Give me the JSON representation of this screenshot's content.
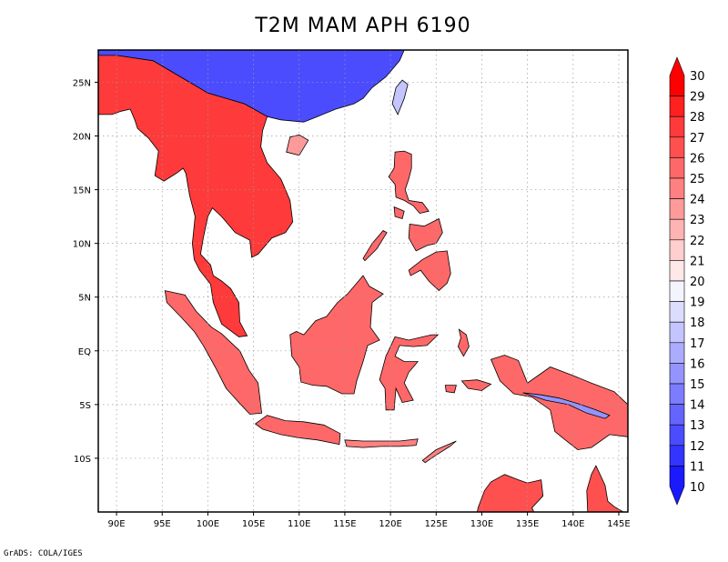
{
  "title": "T2M MAM APH 6190",
  "footer": "GrADS: COLA/IGES",
  "map": {
    "lon_range": [
      88,
      146
    ],
    "lat_range": [
      -15,
      28
    ],
    "lon_ticks": [
      {
        "v": 90,
        "label": "90E"
      },
      {
        "v": 95,
        "label": "95E"
      },
      {
        "v": 100,
        "label": "100E"
      },
      {
        "v": 105,
        "label": "105E"
      },
      {
        "v": 110,
        "label": "110E"
      },
      {
        "v": 115,
        "label": "115E"
      },
      {
        "v": 120,
        "label": "120E"
      },
      {
        "v": 125,
        "label": "125E"
      },
      {
        "v": 130,
        "label": "130E"
      },
      {
        "v": 135,
        "label": "135E"
      },
      {
        "v": 140,
        "label": "140E"
      },
      {
        "v": 145,
        "label": "145E"
      }
    ],
    "lat_ticks": [
      {
        "v": 25,
        "label": "25N"
      },
      {
        "v": 20,
        "label": "20N"
      },
      {
        "v": 15,
        "label": "15N"
      },
      {
        "v": 10,
        "label": "10N"
      },
      {
        "v": 5,
        "label": "5N"
      },
      {
        "v": 0,
        "label": "EQ"
      },
      {
        "v": -5,
        "label": "5S"
      },
      {
        "v": -10,
        "label": "10S"
      }
    ]
  },
  "colorbar": {
    "min": 10,
    "max": 30,
    "labels": [
      "30",
      "29",
      "28",
      "27",
      "26",
      "25",
      "24",
      "23",
      "22",
      "21",
      "20",
      "19",
      "18",
      "17",
      "16",
      "15",
      "14",
      "13",
      "12",
      "11",
      "10"
    ],
    "colors": [
      "#ff0000",
      "#ff2020",
      "#ff3a3a",
      "#ff5050",
      "#ff6868",
      "#ff8080",
      "#ff9a9a",
      "#ffb4b4",
      "#ffcece",
      "#ffe8e8",
      "#f4f4ff",
      "#dcdcff",
      "#c4c4ff",
      "#acacff",
      "#9494ff",
      "#7c7cff",
      "#6464ff",
      "#4c4cff",
      "#3434ff",
      "#1a1aff"
    ]
  },
  "regions": [
    {
      "name": "south-china",
      "t": 13,
      "pts": [
        [
          88,
          28
        ],
        [
          121.5,
          28
        ],
        [
          121,
          27
        ],
        [
          120,
          26
        ],
        [
          119.5,
          25.5
        ],
        [
          118,
          24.5
        ],
        [
          117,
          23.5
        ],
        [
          116,
          23
        ],
        [
          114,
          22.5
        ],
        [
          112,
          21.8
        ],
        [
          110.5,
          21.3
        ],
        [
          108,
          21.5
        ],
        [
          106.5,
          21.8
        ],
        [
          104,
          23
        ],
        [
          102,
          23.5
        ],
        [
          100,
          24
        ],
        [
          98,
          25
        ],
        [
          96,
          26
        ],
        [
          94,
          27
        ],
        [
          90,
          27.5
        ],
        [
          88,
          27.5
        ]
      ]
    },
    {
      "name": "mainland-se-asia",
      "t": 28,
      "pts": [
        [
          88,
          27.5
        ],
        [
          90,
          27.5
        ],
        [
          94,
          27
        ],
        [
          96,
          26
        ],
        [
          98,
          25
        ],
        [
          100,
          24
        ],
        [
          102,
          23.5
        ],
        [
          104,
          23
        ],
        [
          106.5,
          21.8
        ],
        [
          106,
          20.5
        ],
        [
          105.8,
          19
        ],
        [
          106.5,
          17.5
        ],
        [
          108,
          16
        ],
        [
          109,
          14
        ],
        [
          109.3,
          12
        ],
        [
          108.5,
          11
        ],
        [
          107,
          10.5
        ],
        [
          105.5,
          9
        ],
        [
          104.8,
          8.7
        ],
        [
          104.6,
          10.3
        ],
        [
          103,
          11
        ],
        [
          101.5,
          12.5
        ],
        [
          100.5,
          13.3
        ],
        [
          100,
          12.5
        ],
        [
          99.5,
          10.5
        ],
        [
          99.2,
          9
        ],
        [
          100.3,
          8
        ],
        [
          100.6,
          7
        ],
        [
          101.5,
          6.5
        ],
        [
          102.5,
          5.8
        ],
        [
          103.4,
          4.5
        ],
        [
          103.5,
          2.7
        ],
        [
          104.3,
          1.4
        ],
        [
          103.4,
          1.3
        ],
        [
          101.5,
          2.5
        ],
        [
          100.6,
          4.5
        ],
        [
          100.3,
          6.2
        ],
        [
          99.1,
          7.5
        ],
        [
          98.5,
          8.5
        ],
        [
          98.3,
          10
        ],
        [
          98.6,
          12.5
        ],
        [
          98,
          14.5
        ],
        [
          97.6,
          16.5
        ],
        [
          97.3,
          17
        ],
        [
          96.5,
          16.5
        ],
        [
          95.2,
          15.8
        ],
        [
          94.2,
          16.3
        ],
        [
          94.6,
          18.6
        ],
        [
          93.5,
          19.8
        ],
        [
          92.3,
          20.7
        ],
        [
          92,
          21.5
        ],
        [
          91.5,
          22.5
        ],
        [
          90.5,
          22.3
        ],
        [
          89.5,
          22
        ],
        [
          88,
          22
        ]
      ]
    },
    {
      "name": "hainan",
      "t": 24,
      "pts": [
        [
          108.6,
          18.5
        ],
        [
          110,
          18.2
        ],
        [
          111,
          19.6
        ],
        [
          110,
          20.1
        ],
        [
          109,
          19.9
        ]
      ]
    },
    {
      "name": "taiwan",
      "t": 18,
      "pts": [
        [
          121.3,
          25.2
        ],
        [
          121.9,
          24.8
        ],
        [
          121.5,
          23.5
        ],
        [
          120.8,
          22
        ],
        [
          120.2,
          23
        ],
        [
          120.6,
          24.5
        ]
      ]
    },
    {
      "name": "sumatra",
      "t": 26,
      "pts": [
        [
          95.3,
          5.6
        ],
        [
          97.5,
          5.2
        ],
        [
          98.7,
          3.7
        ],
        [
          100.4,
          2.2
        ],
        [
          101.5,
          1.6
        ],
        [
          103.5,
          0
        ],
        [
          104.5,
          -1.8
        ],
        [
          105.5,
          -3
        ],
        [
          105.9,
          -5.8
        ],
        [
          104.6,
          -5.9
        ],
        [
          103.5,
          -4.9
        ],
        [
          102,
          -3.5
        ],
        [
          100.8,
          -1.5
        ],
        [
          99.5,
          0.5
        ],
        [
          98.5,
          1.8
        ],
        [
          97,
          3.2
        ],
        [
          95.5,
          4.5
        ]
      ]
    },
    {
      "name": "java",
      "t": 26,
      "pts": [
        [
          105.2,
          -6.8
        ],
        [
          106.5,
          -6
        ],
        [
          108.5,
          -6.5
        ],
        [
          110.5,
          -6.6
        ],
        [
          112.7,
          -6.9
        ],
        [
          114.5,
          -7.7
        ],
        [
          114.4,
          -8.7
        ],
        [
          112,
          -8.3
        ],
        [
          110,
          -8.1
        ],
        [
          108,
          -7.8
        ],
        [
          106,
          -7.3
        ]
      ]
    },
    {
      "name": "borneo",
      "t": 26,
      "pts": [
        [
          109,
          1.5
        ],
        [
          109.7,
          1.8
        ],
        [
          110.5,
          1.5
        ],
        [
          111.8,
          2.8
        ],
        [
          113,
          3.2
        ],
        [
          114.2,
          4.5
        ],
        [
          115.3,
          5.3
        ],
        [
          116.3,
          6.3
        ],
        [
          117,
          7
        ],
        [
          117.7,
          6
        ],
        [
          119.2,
          5.3
        ],
        [
          118,
          4.5
        ],
        [
          117.8,
          2.2
        ],
        [
          118.8,
          1
        ],
        [
          117.5,
          0.5
        ],
        [
          117,
          -1
        ],
        [
          116.3,
          -2.8
        ],
        [
          116,
          -4
        ],
        [
          114.7,
          -4
        ],
        [
          113,
          -3.3
        ],
        [
          111.5,
          -3.2
        ],
        [
          110.2,
          -2.9
        ],
        [
          110,
          -1.5
        ],
        [
          109.2,
          -0.5
        ]
      ]
    },
    {
      "name": "sulawesi",
      "t": 26,
      "pts": [
        [
          120.5,
          1.3
        ],
        [
          122,
          1
        ],
        [
          124.5,
          1.5
        ],
        [
          125.2,
          1.5
        ],
        [
          124,
          0.5
        ],
        [
          122.5,
          0.4
        ],
        [
          121,
          0.5
        ],
        [
          120.5,
          -0.5
        ],
        [
          121.5,
          -1
        ],
        [
          123,
          -1
        ],
        [
          122,
          -2
        ],
        [
          121.5,
          -3
        ],
        [
          122.5,
          -4.6
        ],
        [
          121.3,
          -4.8
        ],
        [
          120.6,
          -3.5
        ],
        [
          120.4,
          -5.5
        ],
        [
          119.5,
          -5.5
        ],
        [
          119.4,
          -3.5
        ],
        [
          118.8,
          -2.7
        ],
        [
          119.5,
          -0.5
        ]
      ]
    },
    {
      "name": "luzon",
      "t": 26,
      "pts": [
        [
          120.5,
          18.5
        ],
        [
          121.5,
          18.6
        ],
        [
          122.3,
          18.3
        ],
        [
          122.3,
          17
        ],
        [
          122,
          16
        ],
        [
          121.6,
          15
        ],
        [
          122,
          14
        ],
        [
          123.5,
          13.8
        ],
        [
          124.2,
          13
        ],
        [
          123.2,
          12.8
        ],
        [
          122.5,
          13.5
        ],
        [
          121.5,
          14
        ],
        [
          120.6,
          14.3
        ],
        [
          120.5,
          15.5
        ],
        [
          119.8,
          16.2
        ],
        [
          120.4,
          17
        ]
      ]
    },
    {
      "name": "mindanao",
      "t": 26,
      "pts": [
        [
          122,
          7.5
        ],
        [
          123.5,
          8.5
        ],
        [
          125,
          9.2
        ],
        [
          126.2,
          9.3
        ],
        [
          126.6,
          7.2
        ],
        [
          126.2,
          6.3
        ],
        [
          125.3,
          5.6
        ],
        [
          124.2,
          6.5
        ],
        [
          123.3,
          7.5
        ],
        [
          122.2,
          7
        ]
      ]
    },
    {
      "name": "visayas",
      "t": 26,
      "pts": [
        [
          122.1,
          11.8
        ],
        [
          123.7,
          11.6
        ],
        [
          125.3,
          12.3
        ],
        [
          125.7,
          11
        ],
        [
          125,
          10
        ],
        [
          124,
          9.8
        ],
        [
          122.8,
          9.3
        ],
        [
          122,
          10.5
        ]
      ]
    },
    {
      "name": "palawan",
      "t": 26,
      "pts": [
        [
          117.2,
          8.4
        ],
        [
          118.5,
          9.5
        ],
        [
          119.6,
          11
        ],
        [
          119.2,
          11.2
        ],
        [
          118,
          10
        ],
        [
          117,
          8.6
        ]
      ]
    },
    {
      "name": "mindoro",
      "t": 26,
      "pts": [
        [
          120.4,
          13.4
        ],
        [
          121.5,
          13
        ],
        [
          121.3,
          12.3
        ],
        [
          120.5,
          12.5
        ]
      ]
    },
    {
      "name": "timor",
      "t": 25,
      "pts": [
        [
          123.5,
          -10.2
        ],
        [
          125,
          -9.2
        ],
        [
          127.2,
          -8.4
        ],
        [
          126.5,
          -8.9
        ],
        [
          125,
          -9.7
        ],
        [
          123.8,
          -10.4
        ]
      ]
    },
    {
      "name": "nusa-tenggara",
      "t": 25,
      "pts": [
        [
          115,
          -8.3
        ],
        [
          117,
          -8.4
        ],
        [
          119,
          -8.4
        ],
        [
          121,
          -8.4
        ],
        [
          123,
          -8.2
        ],
        [
          122.8,
          -8.8
        ],
        [
          121,
          -8.9
        ],
        [
          119,
          -8.9
        ],
        [
          117,
          -9
        ],
        [
          115.2,
          -8.9
        ]
      ]
    },
    {
      "name": "halmahera",
      "t": 26,
      "pts": [
        [
          127.5,
          2
        ],
        [
          128.3,
          1.5
        ],
        [
          128.6,
          0.4
        ],
        [
          128,
          -0.5
        ],
        [
          127.4,
          0.4
        ],
        [
          127.7,
          1.2
        ]
      ]
    },
    {
      "name": "seram",
      "t": 26,
      "pts": [
        [
          127.8,
          -2.8
        ],
        [
          129.5,
          -2.7
        ],
        [
          131,
          -3.1
        ],
        [
          130,
          -3.7
        ],
        [
          128.5,
          -3.5
        ]
      ]
    },
    {
      "name": "buru",
      "t": 26,
      "pts": [
        [
          126,
          -3.2
        ],
        [
          127.2,
          -3.2
        ],
        [
          127,
          -3.9
        ],
        [
          126.1,
          -3.8
        ]
      ]
    },
    {
      "name": "new-guinea",
      "t": 26,
      "pts": [
        [
          131,
          -0.8
        ],
        [
          132.5,
          -0.4
        ],
        [
          134,
          -0.9
        ],
        [
          135,
          -3
        ],
        [
          137.5,
          -1.5
        ],
        [
          140,
          -2.3
        ],
        [
          142,
          -3
        ],
        [
          144.5,
          -3.8
        ],
        [
          146,
          -5
        ],
        [
          146,
          -8
        ],
        [
          144,
          -7.8
        ],
        [
          142,
          -9
        ],
        [
          140.5,
          -9.2
        ],
        [
          139,
          -8.2
        ],
        [
          138,
          -7.5
        ],
        [
          137.5,
          -5.5
        ],
        [
          135.5,
          -4.3
        ],
        [
          133.5,
          -4
        ],
        [
          132,
          -2.8
        ]
      ]
    },
    {
      "name": "new-guinea-highlands",
      "t": 16,
      "pts": [
        [
          134.5,
          -3.9
        ],
        [
          136.5,
          -4.1
        ],
        [
          138.5,
          -4.4
        ],
        [
          140.5,
          -4.9
        ],
        [
          142.5,
          -5.5
        ],
        [
          144,
          -6
        ],
        [
          143.5,
          -6.3
        ],
        [
          141.5,
          -5.8
        ],
        [
          139.5,
          -5
        ],
        [
          137,
          -4.6
        ]
      ]
    },
    {
      "name": "australia-north",
      "t": 27,
      "pts": [
        [
          129.5,
          -15
        ],
        [
          129.6,
          -14.6
        ],
        [
          130.3,
          -13
        ],
        [
          131,
          -12.2
        ],
        [
          132.5,
          -11.5
        ],
        [
          134,
          -12
        ],
        [
          135,
          -12.3
        ],
        [
          136.5,
          -12
        ],
        [
          136.7,
          -13.5
        ],
        [
          135.5,
          -14.6
        ],
        [
          135.7,
          -15
        ]
      ]
    },
    {
      "name": "cape-york",
      "t": 27,
      "pts": [
        [
          141.6,
          -15
        ],
        [
          141.5,
          -13
        ],
        [
          142,
          -11.5
        ],
        [
          142.5,
          -10.7
        ],
        [
          143.5,
          -12.5
        ],
        [
          143.8,
          -14
        ],
        [
          144.5,
          -14.5
        ],
        [
          145.5,
          -15
        ]
      ]
    }
  ]
}
